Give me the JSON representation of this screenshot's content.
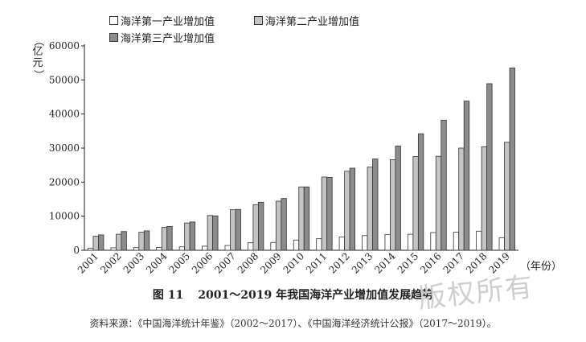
{
  "chart_data": {
    "type": "bar",
    "categories": [
      "2001",
      "2002",
      "2003",
      "2004",
      "2005",
      "2006",
      "2007",
      "2008",
      "2009",
      "2010",
      "2011",
      "2012",
      "2013",
      "2014",
      "2015",
      "2016",
      "2017",
      "2018",
      "2019"
    ],
    "series": [
      {
        "name": "海洋第一产业增加值",
        "color": "#ffffff",
        "values": [
          640,
          730,
          770,
          850,
          1000,
          1200,
          1400,
          2200,
          2300,
          3000,
          3400,
          3900,
          4300,
          4600,
          4700,
          5200,
          5300,
          5600,
          3700
        ]
      },
      {
        "name": "海洋第二产业增加值",
        "color": "#c4c4c4",
        "values": [
          4100,
          4700,
          5300,
          6700,
          8000,
          10200,
          11900,
          13400,
          14400,
          18600,
          21500,
          23200,
          24400,
          26600,
          27500,
          27600,
          30000,
          30400,
          31700
        ]
      },
      {
        "name": "海洋第三产业增加值",
        "color": "#8c8c8c",
        "values": [
          4500,
          5500,
          5700,
          7000,
          8300,
          10100,
          12000,
          14100,
          15200,
          18600,
          21400,
          24100,
          26800,
          30600,
          34200,
          38200,
          43800,
          48900,
          53500
        ]
      }
    ],
    "ylabel": "（亿元）",
    "xlabel": "（年份）",
    "yticks": [
      0,
      10000,
      20000,
      30000,
      40000,
      50000,
      60000
    ],
    "ylim": [
      0,
      60000
    ],
    "legend": "top-left",
    "grid": false
  },
  "caption": {
    "number": "图 11",
    "title": "2001～2019 年我国海洋产业增加值发展趋势"
  },
  "source": "资料来源：《中国海洋统计年鉴》（2002～2017）、《中国海洋经济统计公报》（2017～2019）。",
  "watermark": "版权所有"
}
